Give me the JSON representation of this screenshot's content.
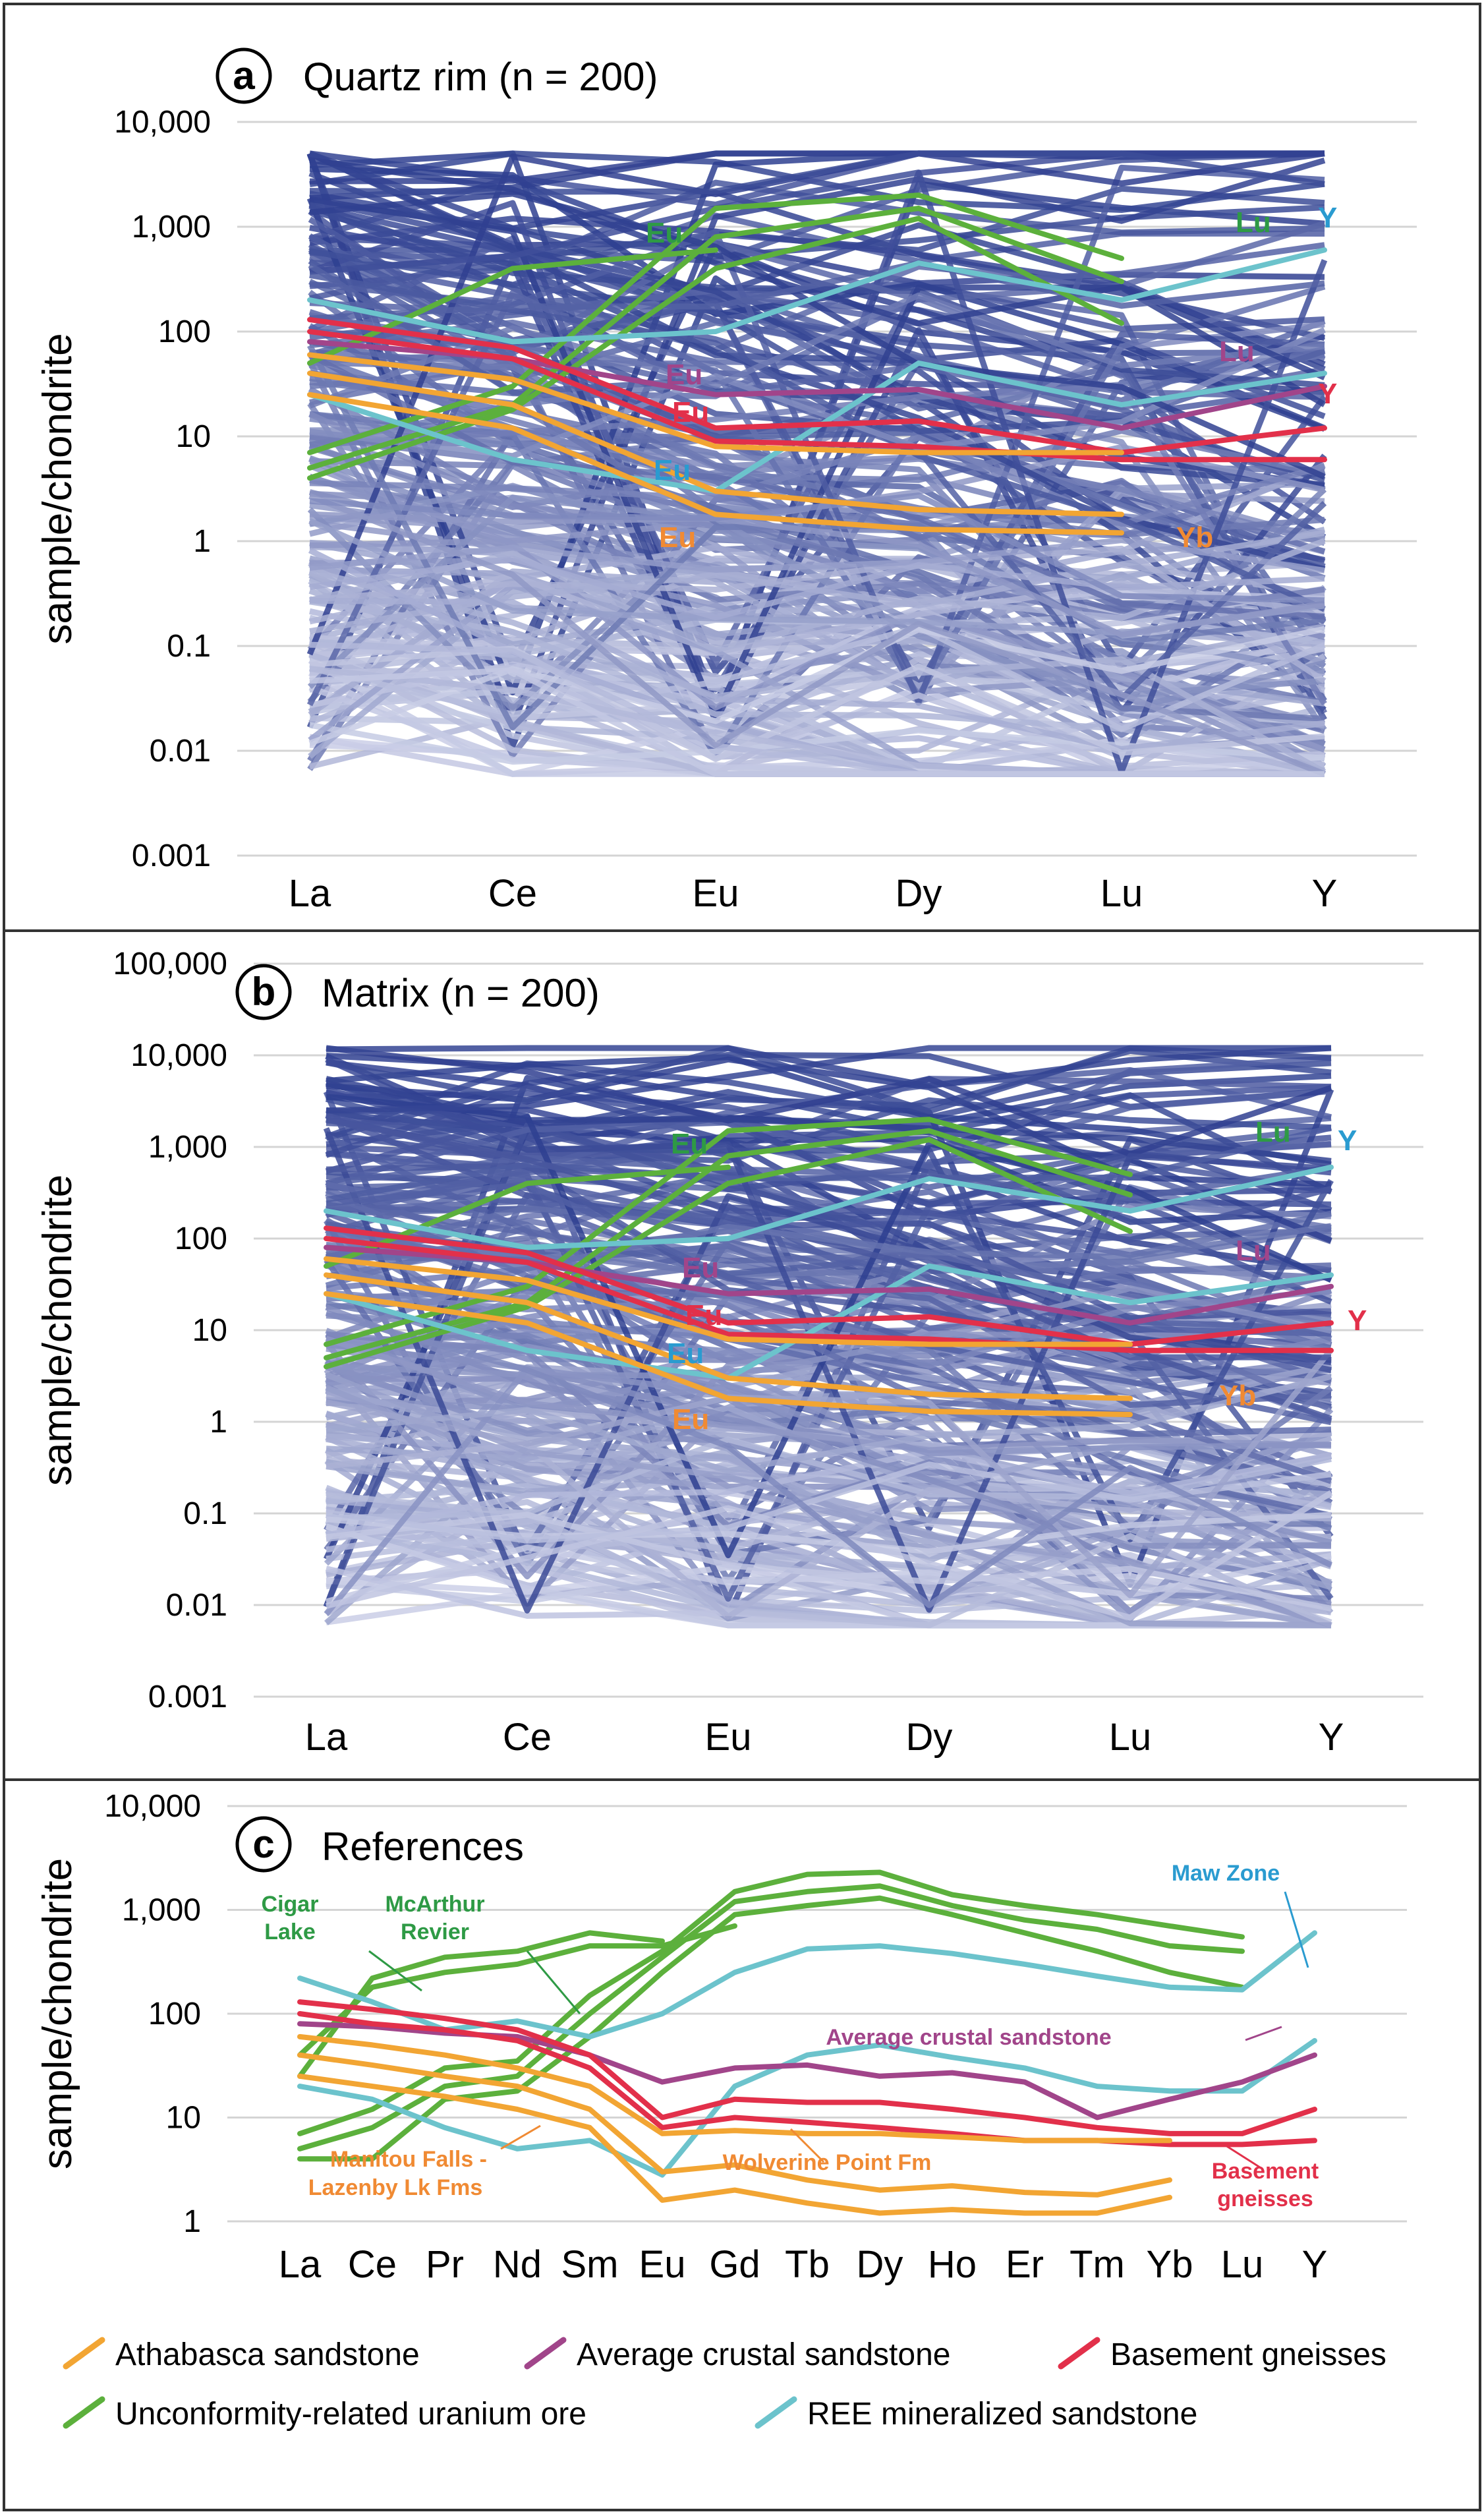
{
  "chart_data": [
    {
      "panel": "a",
      "type": "line",
      "title": "Quartz rim (n = 200)",
      "ylabel": "sample/chondrite",
      "xlabel": "",
      "yscale": "log",
      "ylim": [
        0.001,
        10000
      ],
      "yticks": [
        "10,000",
        "1,000",
        "100",
        "10",
        "1",
        "0.1",
        "0.01",
        "0.001"
      ],
      "categories": [
        "La",
        "Ce",
        "Eu",
        "Dy",
        "Lu",
        "Y"
      ],
      "background_series": {
        "count": 200,
        "color_range": [
          "#d8dbee",
          "#2c3d8f"
        ],
        "max": 5000,
        "min": 0.006
      },
      "series": [
        {
          "name": "Unconformity-related uranium ore",
          "color": "#5cb03c",
          "values": [
            [
              7,
              30,
              1500,
              2000,
              500,
              null
            ],
            [
              5,
              20,
              800,
              1500,
              300,
              null
            ],
            [
              4,
              18,
              400,
              1200,
              120,
              null
            ],
            [
              50,
              400,
              600,
              null,
              null,
              null
            ]
          ]
        },
        {
          "name": "REE mineralized sandstone",
          "color": "#6cc3cc",
          "values": [
            [
              200,
              80,
              100,
              450,
              200,
              600
            ],
            [
              25,
              6,
              3,
              50,
              20,
              40
            ]
          ]
        },
        {
          "name": "Average crustal sandstone",
          "color": "#a1458a",
          "values": [
            [
              80,
              55,
              25,
              28,
              12,
              30
            ]
          ]
        },
        {
          "name": "Basement gneisses",
          "color": "#e2304a",
          "values": [
            [
              130,
              70,
              12,
              14,
              7,
              12
            ],
            [
              100,
              55,
              9,
              8,
              6,
              6
            ]
          ]
        },
        {
          "name": "Athabasca sandstone",
          "color": "#f2a533",
          "values": [
            [
              60,
              35,
              8,
              7,
              7,
              null
            ],
            [
              40,
              20,
              3,
              2,
              1.8,
              null
            ],
            [
              25,
              12,
              1.8,
              1.3,
              1.2,
              null
            ]
          ]
        }
      ],
      "annotations": [
        {
          "text": "Eu",
          "color": "#2e9a45"
        },
        {
          "text": "Lu",
          "color": "#2e9a45"
        },
        {
          "text": "Y",
          "color": "#2a9bd0"
        },
        {
          "text": "Lu",
          "color": "#a1458a"
        },
        {
          "text": "Eu",
          "color": "#a1458a"
        },
        {
          "text": "Eu",
          "color": "#e2304a"
        },
        {
          "text": "Y",
          "color": "#e2304a"
        },
        {
          "text": "Eu",
          "color": "#2a9bd0"
        },
        {
          "text": "Eu",
          "color": "#f08a33"
        },
        {
          "text": "Yb",
          "color": "#f08a33"
        }
      ]
    },
    {
      "panel": "b",
      "type": "line",
      "title": "Matrix (n = 200)",
      "ylabel": "sample/chondrite",
      "xlabel": "",
      "yscale": "log",
      "ylim": [
        0.001,
        100000
      ],
      "yticks": [
        "100,000",
        "10,000",
        "1,000",
        "100",
        "10",
        "1",
        "0.1",
        "0.01",
        "0.001"
      ],
      "categories": [
        "La",
        "Ce",
        "Eu",
        "Dy",
        "Lu",
        "Y"
      ],
      "background_series": {
        "count": 200,
        "color_range": [
          "#d8dbee",
          "#2c3d8f"
        ],
        "max": 12000,
        "min": 0.006
      },
      "series": [
        {
          "name": "Unconformity-related uranium ore",
          "color": "#5cb03c",
          "values": [
            [
              7,
              30,
              1500,
              2000,
              500,
              null
            ],
            [
              5,
              20,
              800,
              1500,
              300,
              null
            ],
            [
              4,
              18,
              400,
              1200,
              120,
              null
            ],
            [
              50,
              400,
              600,
              null,
              null,
              null
            ]
          ]
        },
        {
          "name": "REE mineralized sandstone",
          "color": "#6cc3cc",
          "values": [
            [
              200,
              80,
              100,
              450,
              200,
              600
            ],
            [
              25,
              6,
              3,
              50,
              20,
              40
            ]
          ]
        },
        {
          "name": "Average crustal sandstone",
          "color": "#a1458a",
          "values": [
            [
              80,
              55,
              25,
              28,
              12,
              30
            ]
          ]
        },
        {
          "name": "Basement gneisses",
          "color": "#e2304a",
          "values": [
            [
              130,
              70,
              12,
              14,
              7,
              12
            ],
            [
              100,
              55,
              9,
              8,
              6,
              6
            ]
          ]
        },
        {
          "name": "Athabasca sandstone",
          "color": "#f2a533",
          "values": [
            [
              60,
              35,
              8,
              7,
              7,
              null
            ],
            [
              40,
              20,
              3,
              2,
              1.8,
              null
            ],
            [
              25,
              12,
              1.8,
              1.3,
              1.2,
              null
            ]
          ]
        }
      ],
      "annotations": [
        {
          "text": "Eu",
          "color": "#2e9a45"
        },
        {
          "text": "Lu",
          "color": "#2e9a45"
        },
        {
          "text": "Y",
          "color": "#2a9bd0"
        },
        {
          "text": "Lu",
          "color": "#a1458a"
        },
        {
          "text": "Eu",
          "color": "#a1458a"
        },
        {
          "text": "Eu",
          "color": "#e2304a"
        },
        {
          "text": "Y",
          "color": "#e2304a"
        },
        {
          "text": "Eu",
          "color": "#2a9bd0"
        },
        {
          "text": "Eu",
          "color": "#f08a33"
        },
        {
          "text": "Yb",
          "color": "#f08a33"
        }
      ]
    },
    {
      "panel": "c",
      "type": "line",
      "title": "References",
      "ylabel": "sample/chondrite",
      "xlabel": "",
      "yscale": "log",
      "ylim": [
        1,
        10000
      ],
      "yticks": [
        "10,000",
        "1,000",
        "100",
        "10",
        "1"
      ],
      "categories": [
        "La",
        "Ce",
        "Pr",
        "Nd",
        "Sm",
        "Eu",
        "Gd",
        "Tb",
        "Dy",
        "Ho",
        "Er",
        "Tm",
        "Yb",
        "Lu",
        "Y"
      ],
      "series": [
        {
          "name": "Unconformity-related uranium ore",
          "color": "#5cb03c",
          "values": [
            [
              7,
              12,
              30,
              35,
              150,
              400,
              1500,
              2200,
              2300,
              1400,
              1100,
              900,
              700,
              550,
              null
            ],
            [
              5,
              8,
              20,
              25,
              100,
              350,
              1200,
              1500,
              1700,
              1100,
              800,
              650,
              450,
              400,
              null
            ],
            [
              4,
              4,
              15,
              18,
              60,
              250,
              900,
              1100,
              1300,
              900,
              600,
              400,
              250,
              180,
              null
            ],
            [
              25,
              220,
              350,
              400,
              600,
              500,
              null,
              null,
              null,
              null,
              null,
              null,
              null,
              null,
              null
            ],
            [
              40,
              180,
              250,
              300,
              450,
              450,
              700,
              null,
              null,
              null,
              null,
              null,
              null,
              null,
              null
            ]
          ]
        },
        {
          "name": "REE mineralized sandstone",
          "color": "#6cc3cc",
          "values": [
            [
              220,
              130,
              70,
              85,
              60,
              100,
              250,
              420,
              450,
              380,
              300,
              230,
              180,
              170,
              600
            ],
            [
              20,
              15,
              8,
              5,
              6,
              2.8,
              20,
              40,
              50,
              38,
              30,
              20,
              18,
              18,
              55
            ]
          ]
        },
        {
          "name": "Average crustal sandstone",
          "color": "#a1458a",
          "values": [
            [
              80,
              75,
              65,
              60,
              40,
              22,
              30,
              32,
              25,
              27,
              22,
              10,
              15,
              22,
              40
            ]
          ]
        },
        {
          "name": "Basement gneisses",
          "color": "#e2304a",
          "values": [
            [
              130,
              110,
              90,
              70,
              40,
              10,
              15,
              14,
              14,
              12,
              10,
              8,
              7,
              7,
              12
            ],
            [
              100,
              80,
              70,
              55,
              30,
              8,
              10,
              9,
              8,
              7,
              6,
              6,
              5.5,
              5.5,
              6
            ]
          ]
        },
        {
          "name": "Athabasca sandstone",
          "color": "#f2a533",
          "values": [
            [
              60,
              50,
              40,
              30,
              20,
              7,
              7.5,
              7,
              7,
              6.5,
              6,
              6,
              6,
              null,
              null
            ],
            [
              40,
              32,
              25,
              20,
              12,
              3,
              3.5,
              2.5,
              2,
              2.2,
              1.9,
              1.8,
              2.5,
              null,
              null
            ],
            [
              25,
              20,
              16,
              12,
              8,
              1.6,
              2,
              1.5,
              1.2,
              1.3,
              1.2,
              1.2,
              1.7,
              null,
              null
            ]
          ]
        }
      ],
      "annotations": [
        {
          "text": "Cigar",
          "color": "#2e9a45"
        },
        {
          "text": "Lake",
          "color": "#2e9a45"
        },
        {
          "text": "McArthur",
          "color": "#2e9a45"
        },
        {
          "text": "Revier",
          "color": "#2e9a45"
        },
        {
          "text": "Maw Zone",
          "color": "#2a9bd0"
        },
        {
          "text": "Average crustal sandstone",
          "color": "#a1458a"
        },
        {
          "text": "Wolverine Point Fm",
          "color": "#f08a33"
        },
        {
          "text": "Manitou Falls -",
          "color": "#f08a33"
        },
        {
          "text": "Lazenby Lk Fms",
          "color": "#f08a33"
        },
        {
          "text": "Basement",
          "color": "#e2304a"
        },
        {
          "text": "gneisses",
          "color": "#e2304a"
        }
      ]
    }
  ],
  "legend": [
    {
      "label": "Athabasca sandstone",
      "color": "#f2a533"
    },
    {
      "label": "Average crustal sandstone",
      "color": "#a1458a"
    },
    {
      "label": "Basement gneisses",
      "color": "#e2304a"
    },
    {
      "label": "Unconformity-related uranium ore",
      "color": "#5cb03c"
    },
    {
      "label": "REE mineralized sandstone",
      "color": "#6cc3cc"
    }
  ]
}
